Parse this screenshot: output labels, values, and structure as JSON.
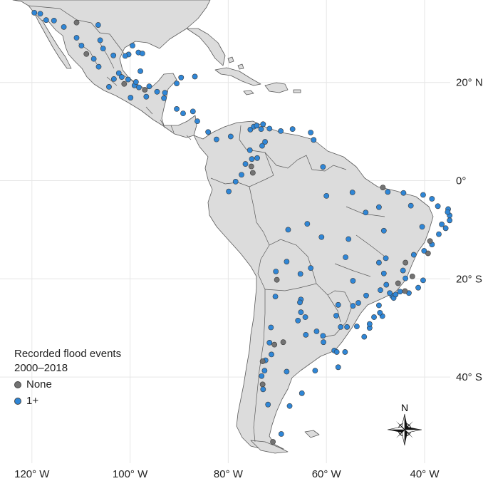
{
  "axes": {
    "lon_labels": [
      {
        "lon": -120,
        "text": "120° W"
      },
      {
        "lon": -100,
        "text": "100° W"
      },
      {
        "lon": -80,
        "text": "80° W"
      },
      {
        "lon": -60,
        "text": "60° W"
      },
      {
        "lon": -40,
        "text": "40° W"
      }
    ],
    "lat_labels": [
      {
        "lat": 20,
        "text": "20° N"
      },
      {
        "lat": 0,
        "text": "0°"
      },
      {
        "lat": -20,
        "text": "20° S"
      },
      {
        "lat": -40,
        "text": "40° S"
      }
    ]
  },
  "legend": {
    "title": "Recorded flood events 2000–2018",
    "items": [
      {
        "label": "None",
        "color": "#737373"
      },
      {
        "label": "1+",
        "color": "#2f86d6"
      }
    ]
  },
  "compass": {
    "label": "N"
  },
  "colors": {
    "land": "#dcdcdc",
    "ocean": "#ffffff",
    "none": "#737373",
    "flood": "#2f86d6"
  },
  "points": [
    {
      "lon": -119.5,
      "lat": 34.2,
      "c": 1
    },
    {
      "lon": -118.3,
      "lat": 34.0,
      "c": 1
    },
    {
      "lon": -117.1,
      "lat": 32.7,
      "c": 1
    },
    {
      "lon": -115.5,
      "lat": 32.6,
      "c": 1
    },
    {
      "lon": -113.5,
      "lat": 31.3,
      "c": 1
    },
    {
      "lon": -110.9,
      "lat": 32.2,
      "c": 0
    },
    {
      "lon": -106.5,
      "lat": 31.7,
      "c": 1
    },
    {
      "lon": -110.9,
      "lat": 29.1,
      "c": 1
    },
    {
      "lon": -109.9,
      "lat": 27.5,
      "c": 1
    },
    {
      "lon": -108.9,
      "lat": 25.8,
      "c": 0
    },
    {
      "lon": -107.4,
      "lat": 24.8,
      "c": 1
    },
    {
      "lon": -106.4,
      "lat": 23.2,
      "c": 1
    },
    {
      "lon": -106.1,
      "lat": 28.6,
      "c": 1
    },
    {
      "lon": -105.5,
      "lat": 26.9,
      "c": 1
    },
    {
      "lon": -103.4,
      "lat": 25.5,
      "c": 1
    },
    {
      "lon": -100.3,
      "lat": 25.7,
      "c": 1
    },
    {
      "lon": -101.0,
      "lat": 25.4,
      "c": 1
    },
    {
      "lon": -98.3,
      "lat": 26.1,
      "c": 1
    },
    {
      "lon": -97.5,
      "lat": 25.9,
      "c": 1
    },
    {
      "lon": -99.5,
      "lat": 27.5,
      "c": 1
    },
    {
      "lon": -102.3,
      "lat": 21.9,
      "c": 1
    },
    {
      "lon": -103.3,
      "lat": 20.7,
      "c": 1
    },
    {
      "lon": -101.7,
      "lat": 21.1,
      "c": 1
    },
    {
      "lon": -100.4,
      "lat": 20.6,
      "c": 1
    },
    {
      "lon": -99.1,
      "lat": 19.4,
      "c": 1
    },
    {
      "lon": -98.2,
      "lat": 19.0,
      "c": 1
    },
    {
      "lon": -96.1,
      "lat": 19.2,
      "c": 1
    },
    {
      "lon": -97.9,
      "lat": 22.3,
      "c": 1
    },
    {
      "lon": -98.8,
      "lat": 20.1,
      "c": 1
    },
    {
      "lon": -99.9,
      "lat": 16.9,
      "c": 1
    },
    {
      "lon": -96.7,
      "lat": 17.1,
      "c": 1
    },
    {
      "lon": -93.1,
      "lat": 16.8,
      "c": 1
    },
    {
      "lon": -92.9,
      "lat": 17.9,
      "c": 1
    },
    {
      "lon": -90.5,
      "lat": 19.8,
      "c": 1
    },
    {
      "lon": -89.6,
      "lat": 21.0,
      "c": 1
    },
    {
      "lon": -86.8,
      "lat": 21.2,
      "c": 1
    },
    {
      "lon": -104.3,
      "lat": 19.1,
      "c": 1
    },
    {
      "lon": -101.2,
      "lat": 19.7,
      "c": 0
    },
    {
      "lon": -97.0,
      "lat": 18.5,
      "c": 0
    },
    {
      "lon": -94.5,
      "lat": 18.1,
      "c": 1
    },
    {
      "lon": -90.5,
      "lat": 14.6,
      "c": 1
    },
    {
      "lon": -89.2,
      "lat": 13.7,
      "c": 1
    },
    {
      "lon": -87.2,
      "lat": 14.1,
      "c": 1
    },
    {
      "lon": -86.3,
      "lat": 12.1,
      "c": 1
    },
    {
      "lon": -84.1,
      "lat": 9.9,
      "c": 1
    },
    {
      "lon": -79.5,
      "lat": 9.0,
      "c": 1
    },
    {
      "lon": -82.4,
      "lat": 8.4,
      "c": 1
    },
    {
      "lon": -75.5,
      "lat": 10.4,
      "c": 1
    },
    {
      "lon": -74.8,
      "lat": 11.0,
      "c": 1
    },
    {
      "lon": -74.2,
      "lat": 11.2,
      "c": 1
    },
    {
      "lon": -72.9,
      "lat": 11.5,
      "c": 1
    },
    {
      "lon": -73.3,
      "lat": 10.5,
      "c": 1
    },
    {
      "lon": -75.6,
      "lat": 6.2,
      "c": 1
    },
    {
      "lon": -74.1,
      "lat": 4.6,
      "c": 1
    },
    {
      "lon": -76.5,
      "lat": 3.4,
      "c": 1
    },
    {
      "lon": -75.3,
      "lat": 2.9,
      "c": 0
    },
    {
      "lon": -73.1,
      "lat": 7.1,
      "c": 1
    },
    {
      "lon": -72.5,
      "lat": 7.9,
      "c": 1
    },
    {
      "lon": -75.2,
      "lat": 4.4,
      "c": 1
    },
    {
      "lon": -77.3,
      "lat": 1.2,
      "c": 1
    },
    {
      "lon": -75.0,
      "lat": 1.6,
      "c": 0
    },
    {
      "lon": -78.5,
      "lat": -0.2,
      "c": 1
    },
    {
      "lon": -79.9,
      "lat": -2.2,
      "c": 1
    },
    {
      "lon": -66.9,
      "lat": 10.5,
      "c": 1
    },
    {
      "lon": -71.6,
      "lat": 10.6,
      "c": 1
    },
    {
      "lon": -69.3,
      "lat": 10.1,
      "c": 1
    },
    {
      "lon": -63.2,
      "lat": 9.8,
      "c": 1
    },
    {
      "lon": -62.6,
      "lat": 8.3,
      "c": 1
    },
    {
      "lon": -60.7,
      "lat": 2.8,
      "c": 1
    },
    {
      "lon": -60.0,
      "lat": -3.1,
      "c": 1
    },
    {
      "lon": -54.7,
      "lat": -2.4,
      "c": 1
    },
    {
      "lon": -48.5,
      "lat": -1.4,
      "c": 0
    },
    {
      "lon": -47.5,
      "lat": -2.3,
      "c": 1
    },
    {
      "lon": -44.3,
      "lat": -2.5,
      "c": 1
    },
    {
      "lon": -42.8,
      "lat": -5.1,
      "c": 1
    },
    {
      "lon": -38.5,
      "lat": -3.7,
      "c": 1
    },
    {
      "lon": -40.3,
      "lat": -2.9,
      "c": 1
    },
    {
      "lon": -37.3,
      "lat": -5.2,
      "c": 1
    },
    {
      "lon": -35.2,
      "lat": -5.8,
      "c": 1
    },
    {
      "lon": -34.9,
      "lat": -7.1,
      "c": 1
    },
    {
      "lon": -35.3,
      "lat": -6.4,
      "c": 1
    },
    {
      "lon": -34.9,
      "lat": -8.1,
      "c": 1
    },
    {
      "lon": -35.7,
      "lat": -9.7,
      "c": 1
    },
    {
      "lon": -36.5,
      "lat": -8.9,
      "c": 1
    },
    {
      "lon": -37.1,
      "lat": -10.9,
      "c": 1
    },
    {
      "lon": -38.5,
      "lat": -13.0,
      "c": 1
    },
    {
      "lon": -38.9,
      "lat": -12.3,
      "c": 0
    },
    {
      "lon": -40.5,
      "lat": -9.4,
      "c": 1
    },
    {
      "lon": -39.3,
      "lat": -14.8,
      "c": 0
    },
    {
      "lon": -40.1,
      "lat": -14.3,
      "c": 1
    },
    {
      "lon": -42.2,
      "lat": -15.1,
      "c": 1
    },
    {
      "lon": -43.9,
      "lat": -16.7,
      "c": 0
    },
    {
      "lon": -44.4,
      "lat": -18.3,
      "c": 1
    },
    {
      "lon": -42.5,
      "lat": -19.5,
      "c": 0
    },
    {
      "lon": -40.3,
      "lat": -20.3,
      "c": 1
    },
    {
      "lon": -41.3,
      "lat": -21.8,
      "c": 1
    },
    {
      "lon": -43.2,
      "lat": -22.9,
      "c": 1
    },
    {
      "lon": -43.9,
      "lat": -19.9,
      "c": 1
    },
    {
      "lon": -45.4,
      "lat": -20.9,
      "c": 0
    },
    {
      "lon": -46.6,
      "lat": -23.5,
      "c": 1
    },
    {
      "lon": -47.1,
      "lat": -22.9,
      "c": 1
    },
    {
      "lon": -46.3,
      "lat": -23.9,
      "c": 1
    },
    {
      "lon": -47.8,
      "lat": -21.2,
      "c": 1
    },
    {
      "lon": -48.3,
      "lat": -18.9,
      "c": 1
    },
    {
      "lon": -49.3,
      "lat": -16.7,
      "c": 1
    },
    {
      "lon": -47.9,
      "lat": -15.8,
      "c": 1
    },
    {
      "lon": -49.0,
      "lat": -22.3,
      "c": 1
    },
    {
      "lon": -45.0,
      "lat": -22.6,
      "c": 1
    },
    {
      "lon": -44.0,
      "lat": -22.5,
      "c": 0
    },
    {
      "lon": -45.9,
      "lat": -23.2,
      "c": 1
    },
    {
      "lon": -48.6,
      "lat": -27.6,
      "c": 1
    },
    {
      "lon": -49.1,
      "lat": -26.9,
      "c": 1
    },
    {
      "lon": -49.3,
      "lat": -25.4,
      "c": 1
    },
    {
      "lon": -51.2,
      "lat": -30.0,
      "c": 1
    },
    {
      "lon": -52.3,
      "lat": -31.8,
      "c": 1
    },
    {
      "lon": -51.9,
      "lat": -23.4,
      "c": 1
    },
    {
      "lon": -53.5,
      "lat": -24.9,
      "c": 1
    },
    {
      "lon": -54.6,
      "lat": -20.4,
      "c": 1
    },
    {
      "lon": -56.1,
      "lat": -15.6,
      "c": 1
    },
    {
      "lon": -55.5,
      "lat": -11.9,
      "c": 1
    },
    {
      "lon": -52.0,
      "lat": -6.5,
      "c": 1
    },
    {
      "lon": -49.3,
      "lat": -5.4,
      "c": 1
    },
    {
      "lon": -48.3,
      "lat": -10.2,
      "c": 1
    },
    {
      "lon": -51.2,
      "lat": -29.2,
      "c": 1
    },
    {
      "lon": -50.3,
      "lat": -27.8,
      "c": 1
    },
    {
      "lon": -53.8,
      "lat": -29.7,
      "c": 1
    },
    {
      "lon": -55.8,
      "lat": -29.8,
      "c": 1
    },
    {
      "lon": -57.1,
      "lat": -29.8,
      "c": 1
    },
    {
      "lon": -63.9,
      "lat": -8.8,
      "c": 1
    },
    {
      "lon": -67.8,
      "lat": -10.0,
      "c": 1
    },
    {
      "lon": -61.0,
      "lat": -11.5,
      "c": 1
    },
    {
      "lon": -63.2,
      "lat": -17.8,
      "c": 1
    },
    {
      "lon": -68.1,
      "lat": -16.5,
      "c": 1
    },
    {
      "lon": -65.3,
      "lat": -19.0,
      "c": 1
    },
    {
      "lon": -70.3,
      "lat": -18.5,
      "c": 1
    },
    {
      "lon": -70.1,
      "lat": -20.2,
      "c": 0
    },
    {
      "lon": -70.4,
      "lat": -23.6,
      "c": 1
    },
    {
      "lon": -71.3,
      "lat": -29.9,
      "c": 1
    },
    {
      "lon": -71.6,
      "lat": -33.0,
      "c": 1
    },
    {
      "lon": -70.6,
      "lat": -33.4,
      "c": 0
    },
    {
      "lon": -71.2,
      "lat": -35.4,
      "c": 1
    },
    {
      "lon": -72.4,
      "lat": -36.6,
      "c": 1
    },
    {
      "lon": -73.0,
      "lat": -36.8,
      "c": 0
    },
    {
      "lon": -72.6,
      "lat": -38.7,
      "c": 1
    },
    {
      "lon": -73.2,
      "lat": -39.8,
      "c": 1
    },
    {
      "lon": -73.0,
      "lat": -41.5,
      "c": 0
    },
    {
      "lon": -72.9,
      "lat": -42.5,
      "c": 1
    },
    {
      "lon": -71.9,
      "lat": -45.6,
      "c": 1
    },
    {
      "lon": -70.9,
      "lat": -53.2,
      "c": 0
    },
    {
      "lon": -65.2,
      "lat": -24.2,
      "c": 1
    },
    {
      "lon": -65.4,
      "lat": -24.8,
      "c": 1
    },
    {
      "lon": -65.2,
      "lat": -26.8,
      "c": 1
    },
    {
      "lon": -64.3,
      "lat": -27.8,
      "c": 1
    },
    {
      "lon": -65.8,
      "lat": -28.5,
      "c": 1
    },
    {
      "lon": -68.8,
      "lat": -32.9,
      "c": 0
    },
    {
      "lon": -64.2,
      "lat": -31.4,
      "c": 1
    },
    {
      "lon": -62.0,
      "lat": -30.7,
      "c": 1
    },
    {
      "lon": -60.7,
      "lat": -31.6,
      "c": 1
    },
    {
      "lon": -60.6,
      "lat": -32.9,
      "c": 1
    },
    {
      "lon": -58.4,
      "lat": -34.6,
      "c": 1
    },
    {
      "lon": -57.9,
      "lat": -34.9,
      "c": 1
    },
    {
      "lon": -56.2,
      "lat": -34.9,
      "c": 1
    },
    {
      "lon": -57.6,
      "lat": -38.0,
      "c": 1
    },
    {
      "lon": -62.3,
      "lat": -38.7,
      "c": 1
    },
    {
      "lon": -68.1,
      "lat": -38.9,
      "c": 1
    },
    {
      "lon": -65.0,
      "lat": -43.3,
      "c": 1
    },
    {
      "lon": -67.5,
      "lat": -45.9,
      "c": 1
    },
    {
      "lon": -69.2,
      "lat": -51.6,
      "c": 1
    },
    {
      "lon": -58.0,
      "lat": -27.5,
      "c": 1
    },
    {
      "lon": -57.6,
      "lat": -25.3,
      "c": 1
    },
    {
      "lon": -54.6,
      "lat": -25.5,
      "c": 1
    }
  ]
}
